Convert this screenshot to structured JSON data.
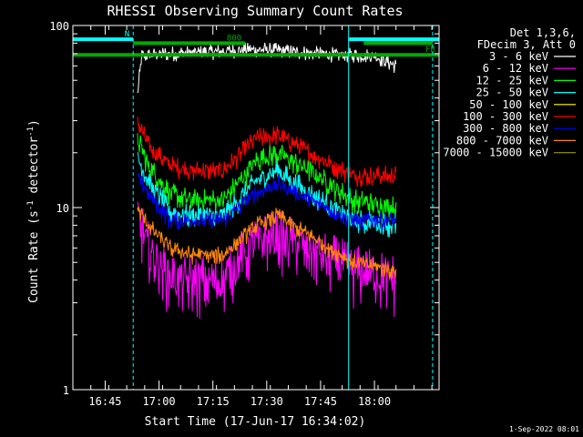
{
  "chart_data": {
    "type": "line",
    "title": "RHESSI Observing Summary Count Rates",
    "xlabel": "Start Time (17-Jun-17 16:34:02)",
    "ylabel_main": "Count Rate (s",
    "ylabel_sup": "-1",
    "ylabel_mid": " detector",
    "ylabel_end": ")",
    "yscale": "log",
    "ylim": [
      1,
      100
    ],
    "xlim": [
      16.6,
      18.3
    ],
    "y_ticks": [
      {
        "value": 1,
        "label": "1"
      },
      {
        "value": 10,
        "label": "10"
      },
      {
        "value": 100,
        "label": "100"
      }
    ],
    "x_ticks": [
      {
        "value": 16.75,
        "label": "16:45"
      },
      {
        "value": 17.0,
        "label": "17:00"
      },
      {
        "value": 17.25,
        "label": "17:15"
      },
      {
        "value": 17.5,
        "label": "17:30"
      },
      {
        "value": 17.75,
        "label": "17:45"
      },
      {
        "value": 18.0,
        "label": "18:00"
      }
    ],
    "legend": {
      "header": [
        "Det 1,3,6,",
        "FDecim 3, Att 0"
      ],
      "entries": [
        {
          "label": "3 - 6 keV",
          "color": "#000000"
        },
        {
          "label": "6 - 12 keV",
          "color": "#ff00ff"
        },
        {
          "label": "12 - 25 keV",
          "color": "#00ff00"
        },
        {
          "label": "25 - 50 keV",
          "color": "#00ffff"
        },
        {
          "label": "50 - 100 keV",
          "color": "#ffff00"
        },
        {
          "label": "100 - 300 keV",
          "color": "#ff0000"
        },
        {
          "label": "300 - 800 keV",
          "color": "#0000ff"
        },
        {
          "label": "800 - 7000 keV",
          "color": "#ff8800"
        },
        {
          "label": "7000 - 15000 keV",
          "color": "#888800"
        }
      ]
    },
    "series": [
      {
        "name": "3 - 6 keV",
        "color": "#000000",
        "noise": 0.05,
        "x": [
          16.9,
          16.92,
          17.0,
          17.2,
          17.35,
          17.5,
          17.6,
          17.75,
          17.85,
          18.0,
          18.1
        ],
        "y": [
          42,
          68,
          70,
          71,
          73,
          74,
          72,
          70,
          69,
          68,
          60
        ]
      },
      {
        "name": "100 - 300 keV",
        "color": "#ff0000",
        "noise": 0.07,
        "x": [
          16.9,
          16.95,
          17.05,
          17.15,
          17.3,
          17.45,
          17.55,
          17.7,
          17.9,
          18.1
        ],
        "y": [
          30,
          22,
          17,
          16,
          16,
          24,
          25,
          20,
          15,
          15
        ]
      },
      {
        "name": "12 - 25 keV",
        "color": "#00ff00",
        "noise": 0.08,
        "x": [
          16.9,
          16.95,
          17.05,
          17.15,
          17.3,
          17.45,
          17.55,
          17.7,
          17.9,
          18.1
        ],
        "y": [
          24,
          17,
          12,
          11,
          11,
          18,
          20,
          16,
          11,
          10
        ]
      },
      {
        "name": "25 - 50 keV",
        "color": "#00ffff",
        "noise": 0.08,
        "x": [
          16.9,
          16.95,
          17.05,
          17.15,
          17.3,
          17.45,
          17.55,
          17.7,
          17.9,
          18.1
        ],
        "y": [
          19,
          14,
          9.5,
          9,
          9,
          14,
          16,
          12,
          8.5,
          8
        ]
      },
      {
        "name": "300 - 800 keV",
        "color": "#0000ff",
        "noise": 0.06,
        "x": [
          16.9,
          16.95,
          17.05,
          17.15,
          17.3,
          17.45,
          17.55,
          17.7,
          17.9,
          18.1
        ],
        "y": [
          15,
          12,
          8.5,
          8.5,
          8.5,
          12,
          13.5,
          11,
          8.5,
          8.5
        ]
      },
      {
        "name": "6 - 12 keV",
        "color": "#ff00ff",
        "noise": 0.2,
        "x": [
          16.9,
          16.95,
          17.05,
          17.15,
          17.3,
          17.45,
          17.55,
          17.7,
          17.9,
          18.1
        ],
        "y": [
          9,
          6,
          4.2,
          4,
          4,
          6.5,
          7,
          6,
          4.5,
          4
        ]
      },
      {
        "name": "800 - 7000 keV",
        "color": "#ff8800",
        "noise": 0.06,
        "x": [
          16.9,
          16.95,
          17.05,
          17.15,
          17.3,
          17.45,
          17.55,
          17.7,
          17.9,
          18.1
        ],
        "y": [
          10,
          8,
          6,
          5.5,
          5.5,
          8,
          9,
          7,
          5,
          4.5
        ]
      }
    ],
    "segments": [
      {
        "name": "N",
        "color": "#00ffff",
        "y": 84,
        "label": "N",
        "ranges": [
          [
            16.6,
            16.88
          ],
          [
            17.88,
            18.3
          ]
        ]
      },
      {
        "name": "800",
        "color": "#00aa00",
        "y": 80,
        "label": "800",
        "ranges": [
          [
            16.88,
            17.4
          ],
          [
            17.95,
            18.27
          ]
        ]
      },
      {
        "name": "FR",
        "color": "#00aa00",
        "y": 69,
        "label": "FR",
        "ranges": [
          [
            16.6,
            18.3
          ]
        ]
      }
    ],
    "vlines": [
      {
        "x": 16.6,
        "color": "#00ffff",
        "style": "solid"
      },
      {
        "x": 16.88,
        "color": "#00ffff",
        "style": "dashed"
      },
      {
        "x": 17.88,
        "color": "#00ffff",
        "style": "solid"
      },
      {
        "x": 18.27,
        "color": "#00ffff",
        "style": "dashed"
      }
    ],
    "grid": false
  },
  "footer": {
    "date": "1-Sep-2022 08:01"
  }
}
